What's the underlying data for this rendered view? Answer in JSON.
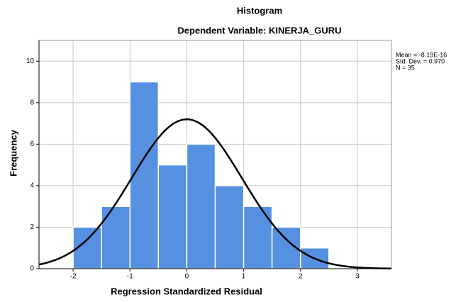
{
  "chart_data": {
    "type": "histogram",
    "title": "Histogram",
    "subtitle": "Dependent Variable: KINERJA_GURU",
    "x_label": "Regression Standardized Residual",
    "y_label": "Frequency",
    "bins": [
      -2,
      -1.5,
      -1,
      -0.5,
      0,
      0.5,
      1,
      1.5,
      2,
      2.5
    ],
    "values": [
      2,
      3,
      9,
      5,
      6,
      4,
      3,
      2,
      1
    ],
    "color": "#5591e0",
    "curve_color": "#000000",
    "xlim": [
      -2.6,
      3.6
    ],
    "xticks": [
      -2,
      -1,
      0,
      1,
      2,
      3
    ],
    "ylim": [
      0,
      11
    ],
    "yticks": [
      0,
      2,
      4,
      6,
      8,
      10
    ],
    "grid": true,
    "mean": {
      "value": -8.19e-16,
      "label": "Mean = -8.19E-16"
    },
    "std_dev": {
      "value": 0.97,
      "label": "Std. Dev. = 0.970"
    },
    "n": {
      "value": 35,
      "label": "N = 35"
    }
  }
}
